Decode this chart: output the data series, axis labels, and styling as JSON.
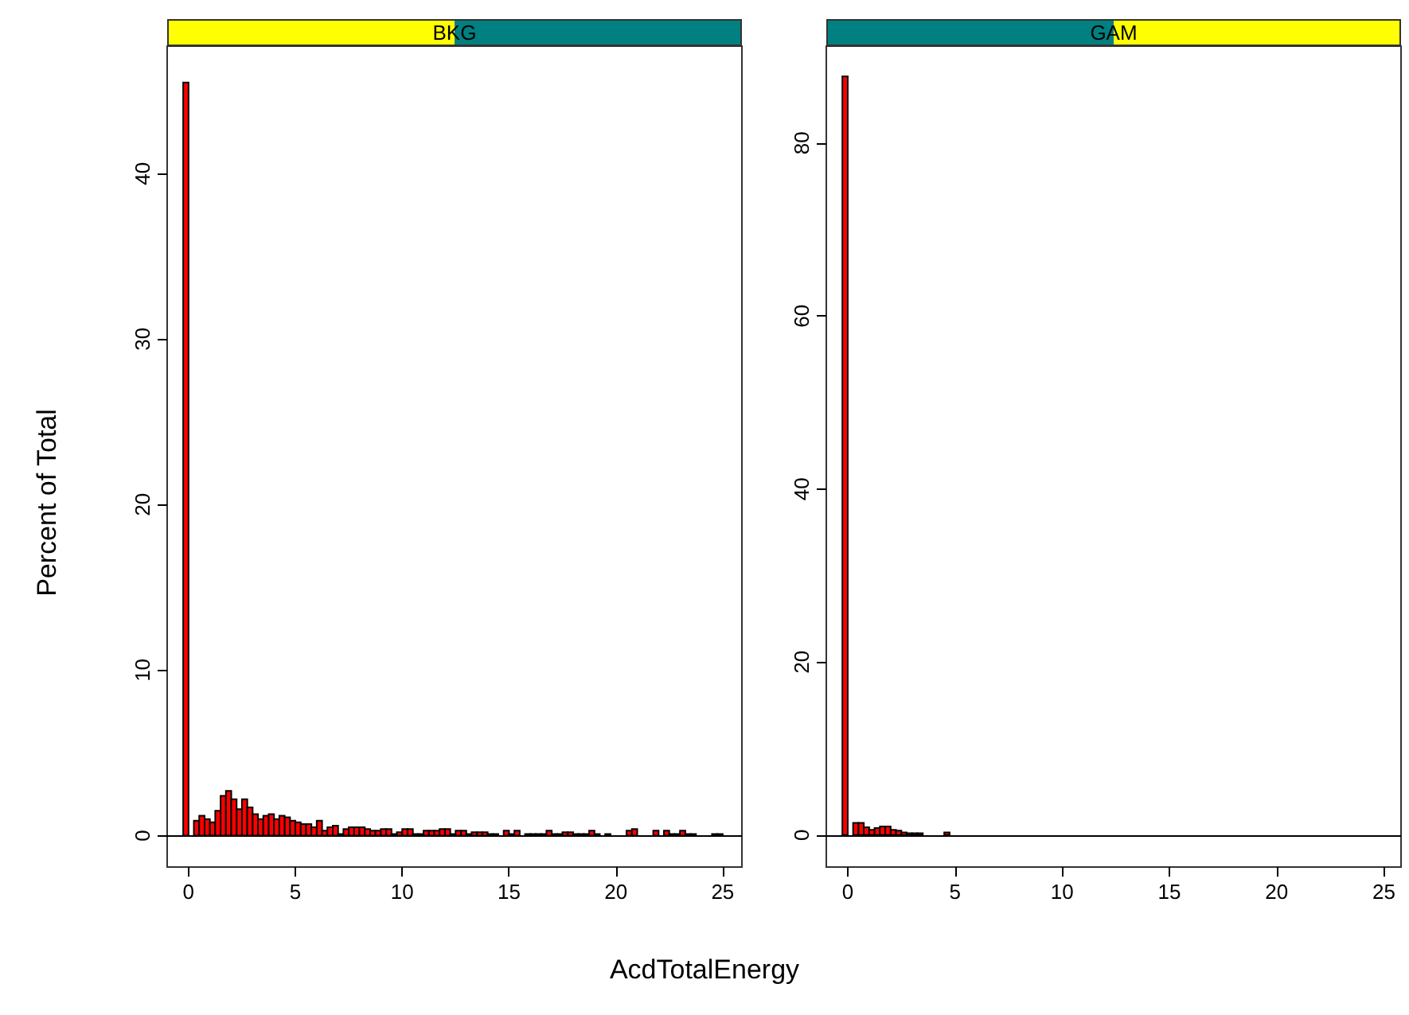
{
  "chart_data": [
    {
      "type": "histogram",
      "title": "BKG",
      "xlabel": "AcdTotalEnergy",
      "ylabel": "Percent of Total",
      "color": "#ff0000",
      "bins": [
        -0.25,
        0,
        0.25,
        0.5,
        0.75,
        1,
        1.25,
        1.5,
        1.75,
        2,
        2.25,
        2.5,
        2.75,
        3,
        3.25,
        3.5,
        3.75,
        4,
        4.25,
        4.5,
        4.75,
        5,
        5.25,
        5.5,
        5.75,
        6,
        6.25,
        6.5,
        6.75,
        7,
        7.25,
        7.5,
        7.75,
        8,
        8.25,
        8.5,
        8.75,
        9,
        9.25,
        9.5,
        9.75,
        10,
        10.25,
        10.5,
        10.75,
        11,
        11.25,
        11.5,
        11.75,
        12,
        12.25,
        12.5,
        12.75,
        13,
        13.25,
        13.5,
        13.75,
        14,
        14.25,
        14.5,
        14.75,
        15,
        15.25,
        15.5,
        15.75,
        16,
        16.25,
        16.5,
        16.75,
        17,
        17.25,
        17.5,
        17.75,
        18,
        18.25,
        18.5,
        18.75,
        19,
        19.25,
        19.5,
        19.75,
        20,
        20.25,
        20.5,
        20.75,
        21,
        21.25,
        21.5,
        21.75,
        22,
        22.25,
        22.5,
        22.75,
        23,
        23.25,
        23.5,
        23.75,
        24,
        24.25,
        24.5,
        24.75,
        25
      ],
      "values": [
        45.5,
        0,
        0.9,
        1.2,
        1.0,
        0.8,
        1.5,
        2.4,
        2.7,
        2.2,
        1.6,
        2.2,
        1.7,
        1.3,
        1.0,
        1.2,
        1.3,
        1.0,
        1.2,
        1.1,
        0.9,
        0.8,
        0.7,
        0.7,
        0.5,
        0.9,
        0.3,
        0.5,
        0.6,
        0.1,
        0.4,
        0.5,
        0.5,
        0.5,
        0.4,
        0.3,
        0.3,
        0.4,
        0.4,
        0.1,
        0.2,
        0.4,
        0.4,
        0.1,
        0.1,
        0.3,
        0.3,
        0.3,
        0.4,
        0.4,
        0.1,
        0.3,
        0.3,
        0.1,
        0.2,
        0.2,
        0.2,
        0.1,
        0.1,
        0,
        0.3,
        0.1,
        0.3,
        0,
        0.1,
        0.1,
        0.1,
        0.1,
        0.3,
        0.1,
        0.1,
        0.2,
        0.2,
        0.1,
        0.1,
        0.1,
        0.3,
        0.1,
        0,
        0.1,
        0,
        0,
        0,
        0.3,
        0.4,
        0,
        0,
        0,
        0.3,
        0,
        0.3,
        0.1,
        0.1,
        0.3,
        0.1,
        0.1,
        0,
        0,
        0,
        0.1,
        0.1
      ],
      "xlim": [
        -1,
        25.9
      ],
      "xticks": [
        0,
        5,
        10,
        15,
        20,
        25
      ],
      "ylim": [
        -1.9,
        47.7
      ],
      "yticks": [
        0,
        10,
        20,
        30,
        40
      ],
      "grid": false,
      "ref_lines": [
        {
          "axis": "y",
          "value": 0,
          "color": "#000000"
        }
      ]
    },
    {
      "type": "histogram",
      "title": "GAM",
      "color": "#ff0000",
      "bins": [
        -0.25,
        0,
        0.25,
        0.5,
        0.75,
        1,
        1.25,
        1.5,
        1.75,
        2,
        2.25,
        2.5,
        2.75,
        3,
        3.25,
        3.5,
        3.75,
        4,
        4.25,
        4.5,
        4.75,
        5,
        5.25,
        5.5,
        5.75,
        6,
        6.25,
        6.5,
        6.75,
        7,
        7.25,
        7.5,
        7.75,
        8,
        8.25,
        8.5,
        8.75,
        9,
        9.25,
        9.5,
        9.75,
        10,
        10.25,
        10.5,
        10.75,
        11,
        11.25,
        11.5,
        11.75,
        12,
        12.25,
        12.5,
        12.75,
        13,
        13.25,
        13.5,
        13.75,
        14,
        14.25,
        14.5,
        14.75,
        15,
        15.25,
        15.5,
        15.75,
        16,
        16.25,
        16.5,
        16.75,
        17,
        17.25,
        17.5,
        17.75,
        18,
        18.25,
        18.5,
        18.75,
        19,
        19.25,
        19.5,
        19.75,
        20,
        20.25,
        20.5,
        20.75,
        21,
        21.25,
        21.5,
        21.75,
        22,
        22.25,
        22.5,
        22.75,
        23,
        23.25,
        23.5,
        23.75,
        24,
        24.25,
        24.5,
        24.75,
        25
      ],
      "values": [
        87.7,
        0,
        1.4,
        1.4,
        0.9,
        0.6,
        0.8,
        1.0,
        1.0,
        0.6,
        0.5,
        0.3,
        0.2,
        0.2,
        0.2,
        0,
        0,
        0,
        0,
        0.3,
        0,
        0,
        0,
        0,
        0,
        0,
        0,
        0,
        0,
        0,
        0,
        0,
        0,
        0,
        0,
        0,
        0,
        0,
        0,
        0,
        0,
        0,
        0,
        0,
        0,
        0,
        0,
        0,
        0,
        0,
        0,
        0,
        0,
        0,
        0,
        0,
        0,
        0,
        0,
        0,
        0,
        0,
        0,
        0,
        0,
        0,
        0,
        0,
        0,
        0,
        0,
        0,
        0,
        0,
        0,
        0,
        0,
        0,
        0,
        0,
        0,
        0,
        0,
        0,
        0,
        0,
        0,
        0,
        0,
        0,
        0,
        0,
        0,
        0,
        0,
        0,
        0,
        0,
        0,
        0,
        0
      ],
      "xlim": [
        -1,
        25.8
      ],
      "xticks": [
        0,
        5,
        10,
        15,
        20,
        25
      ],
      "ylim": [
        -3.7,
        91.2
      ],
      "yticks": [
        0,
        20,
        40,
        60,
        80
      ],
      "grid": false,
      "ref_lines": [
        {
          "axis": "y",
          "value": 0,
          "color": "#000000"
        }
      ]
    }
  ]
}
